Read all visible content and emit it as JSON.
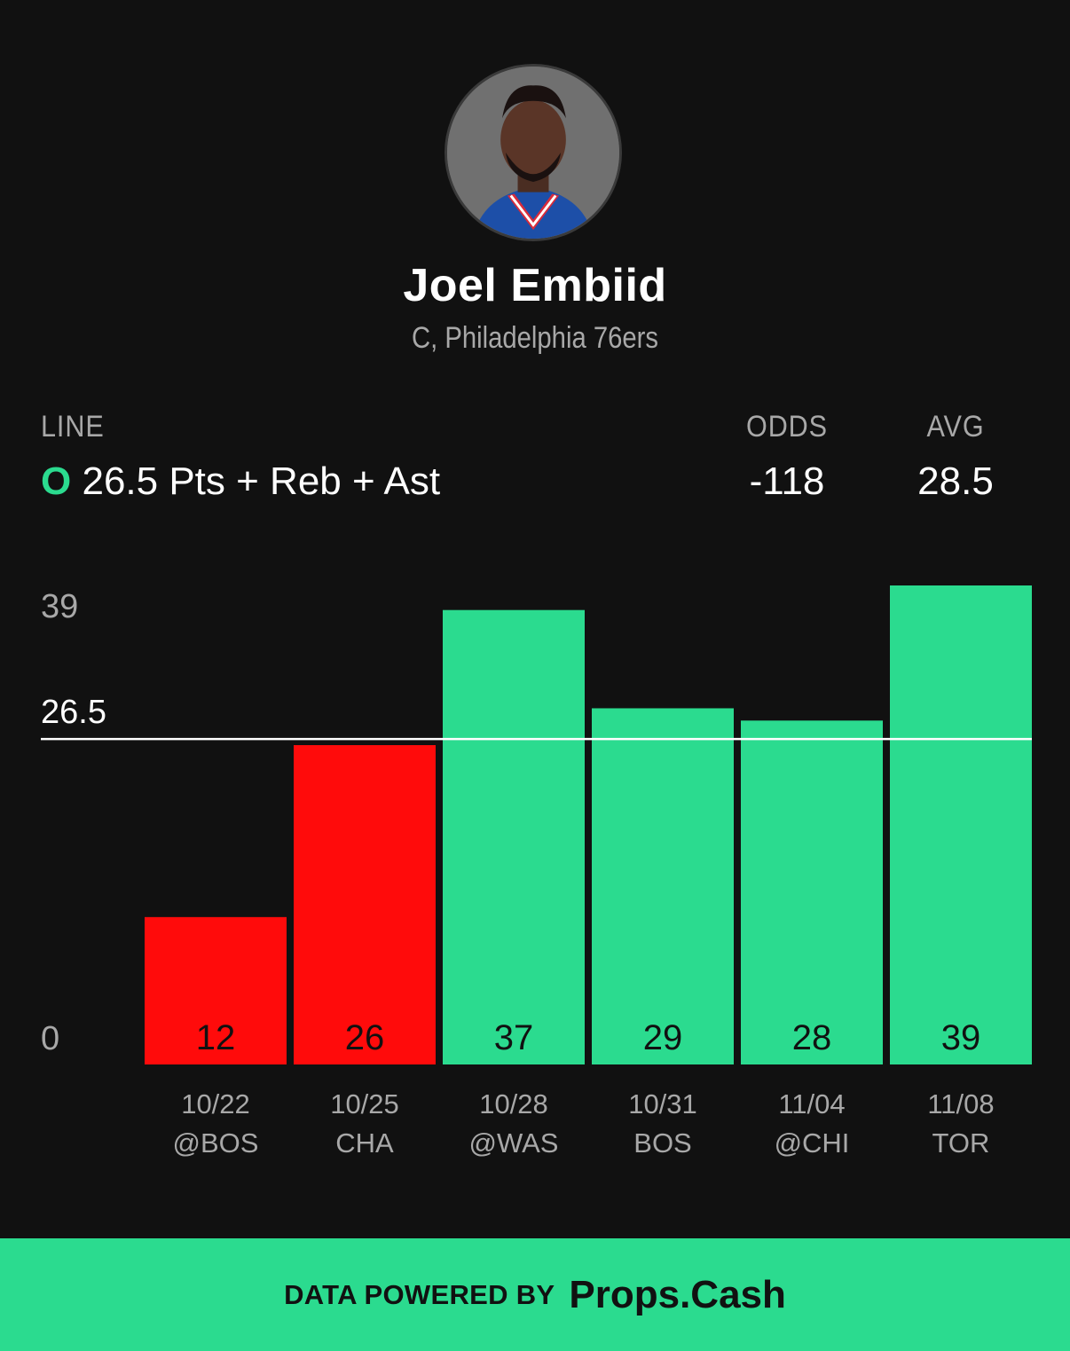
{
  "player": {
    "name": "Joel Embiid",
    "position_team": "C, Philadelphia 76ers"
  },
  "stats": {
    "line_header": "LINE",
    "odds_header": "ODDS",
    "avg_header": "AVG",
    "line_side": "O",
    "line_text": "26.5 Pts + Reb + Ast",
    "odds_value": "-118",
    "avg_value": "28.5"
  },
  "chart_data": {
    "type": "bar",
    "categories": [
      "10/22 @BOS",
      "10/25 CHA",
      "10/28 @WAS",
      "10/31 BOS",
      "11/04 @CHI",
      "11/08 TOR"
    ],
    "dates": [
      "10/22",
      "10/25",
      "10/28",
      "10/31",
      "11/04",
      "11/08"
    ],
    "opponents": [
      "@BOS",
      "CHA",
      "@WAS",
      "BOS",
      "@CHI",
      "TOR"
    ],
    "values": [
      12,
      26,
      37,
      29,
      28,
      39
    ],
    "line": 26.5,
    "ylim": [
      0,
      39
    ],
    "y_tick_labels": [
      "39",
      "26.5",
      "0"
    ],
    "colors": {
      "over": "#2bdb8f",
      "under": "#ff0b0b",
      "line": "#ffffff"
    },
    "title": "",
    "xlabel": "",
    "ylabel": ""
  },
  "footer": {
    "powered_by": "DATA POWERED BY",
    "brand": "Props.Cash"
  }
}
